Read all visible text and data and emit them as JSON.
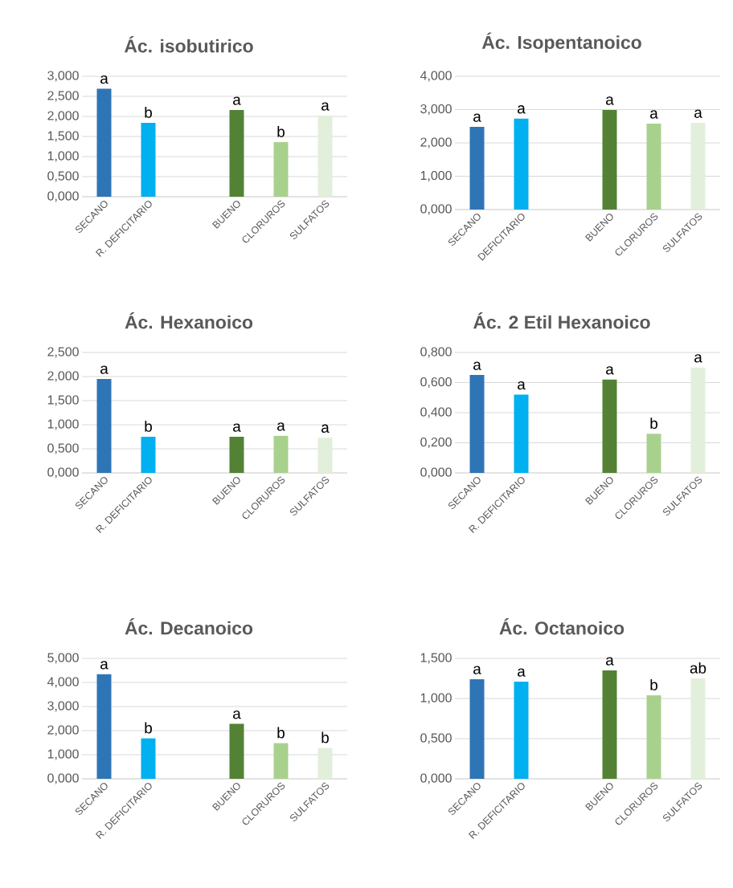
{
  "chart_data": [
    {
      "type": "bar",
      "title": "Ác. isobutirico",
      "categories": [
        "SECANO",
        "R. DEFICITARIO",
        null,
        "BUENO",
        "CLORUROS",
        "SULFATOS"
      ],
      "values": [
        2.69,
        1.84,
        null,
        2.16,
        1.36,
        2.02
      ],
      "colors": [
        "#2e75b6",
        "#00b0f0",
        null,
        "#548235",
        "#a9d18e",
        "#e2efda"
      ],
      "ylim": [
        0,
        3
      ],
      "yticks": [
        {
          "value": 0,
          "label": "0,000"
        },
        {
          "value": 0.5,
          "label": "0,500"
        },
        {
          "value": 1,
          "label": "1,000"
        },
        {
          "value": 1.5,
          "label": "1,500"
        },
        {
          "value": 2,
          "label": "2,000"
        },
        {
          "value": 2.5,
          "label": "2,500"
        },
        {
          "value": 3,
          "label": "3,000"
        }
      ],
      "grid": "y",
      "annotations": [
        {
          "text": "a",
          "x": "SECANO",
          "y": 2.69
        },
        {
          "text": "b",
          "x": "R. DEFICITARIO",
          "y": 1.84
        },
        {
          "text": "a",
          "x": "BUENO",
          "y": 2.16
        },
        {
          "text": "b",
          "x": "CLORUROS",
          "y": 1.36
        },
        {
          "text": "a",
          "x": "SULFATOS",
          "y": 2.02
        }
      ]
    },
    {
      "type": "bar",
      "title": "Ác. Isopentanoico",
      "categories": [
        "SECANO",
        "DEFICITARIO",
        null,
        "BUENO",
        "CLORUROS",
        "SULFATOS"
      ],
      "values": [
        2.48,
        2.73,
        null,
        2.99,
        2.58,
        2.6
      ],
      "colors": [
        "#2e75b6",
        "#00b0f0",
        null,
        "#548235",
        "#a9d18e",
        "#e2efda"
      ],
      "ylim": [
        0,
        4
      ],
      "yticks": [
        {
          "value": 0,
          "label": "0,000"
        },
        {
          "value": 1,
          "label": "1,000"
        },
        {
          "value": 2,
          "label": "2,000"
        },
        {
          "value": 3,
          "label": "3,000"
        },
        {
          "value": 4,
          "label": "4,000"
        }
      ],
      "grid": "y",
      "annotations": [
        {
          "text": "a",
          "x": "SECANO",
          "y": 2.48
        },
        {
          "text": "a",
          "x": "DEFICITARIO",
          "y": 2.73
        },
        {
          "text": "a",
          "x": "BUENO",
          "y": 2.99
        },
        {
          "text": "a",
          "x": "CLORUROS",
          "y": 2.58
        },
        {
          "text": "a",
          "x": "SULFATOS",
          "y": 2.6
        }
      ]
    },
    {
      "type": "bar",
      "title": "Ác. Hexanoico",
      "categories": [
        "SECANO",
        "R. DEFICITARIO",
        null,
        "BUENO",
        "CLORUROS",
        "SULFATOS"
      ],
      "values": [
        1.95,
        0.75,
        null,
        0.75,
        0.77,
        0.73
      ],
      "colors": [
        "#2e75b6",
        "#00b0f0",
        null,
        "#548235",
        "#a9d18e",
        "#e2efda"
      ],
      "ylim": [
        0,
        2.5
      ],
      "yticks": [
        {
          "value": 0,
          "label": "0,000"
        },
        {
          "value": 0.5,
          "label": "0,500"
        },
        {
          "value": 1,
          "label": "1,000"
        },
        {
          "value": 1.5,
          "label": "1,500"
        },
        {
          "value": 2,
          "label": "2,000"
        },
        {
          "value": 2.5,
          "label": "2,500"
        }
      ],
      "grid": "y",
      "annotations": [
        {
          "text": "a",
          "x": "SECANO",
          "y": 1.95
        },
        {
          "text": "b",
          "x": "R. DEFICITARIO",
          "y": 0.75
        },
        {
          "text": "a",
          "x": "BUENO",
          "y": 0.75
        },
        {
          "text": "a",
          "x": "CLORUROS",
          "y": 0.77
        },
        {
          "text": "a",
          "x": "SULFATOS",
          "y": 0.73
        }
      ]
    },
    {
      "type": "bar",
      "title": "Ác. 2 Etil Hexanoico",
      "categories": [
        "SECANO",
        "R. DEFICITARIO",
        null,
        "BUENO",
        "CLORUROS",
        "SULFATOS"
      ],
      "values": [
        0.65,
        0.52,
        null,
        0.62,
        0.26,
        0.7
      ],
      "colors": [
        "#2e75b6",
        "#00b0f0",
        null,
        "#548235",
        "#a9d18e",
        "#e2efda"
      ],
      "ylim": [
        0,
        0.8
      ],
      "yticks": [
        {
          "value": 0,
          "label": "0,000"
        },
        {
          "value": 0.2,
          "label": "0,200"
        },
        {
          "value": 0.4,
          "label": "0,400"
        },
        {
          "value": 0.6,
          "label": "0,600"
        },
        {
          "value": 0.8,
          "label": "0,800"
        }
      ],
      "grid": "y",
      "annotations": [
        {
          "text": "a",
          "x": "SECANO",
          "y": 0.65
        },
        {
          "text": "a",
          "x": "R. DEFICITARIO",
          "y": 0.52
        },
        {
          "text": "a",
          "x": "BUENO",
          "y": 0.62
        },
        {
          "text": "b",
          "x": "CLORUROS",
          "y": 0.26
        },
        {
          "text": "a",
          "x": "SULFATOS",
          "y": 0.7
        }
      ]
    },
    {
      "type": "bar",
      "title": "Ác. Decanoico",
      "categories": [
        "SECANO",
        "R. DEFICITARIO",
        null,
        "BUENO",
        "CLORUROS",
        "SULFATOS"
      ],
      "values": [
        4.34,
        1.68,
        null,
        2.28,
        1.48,
        1.28
      ],
      "colors": [
        "#2e75b6",
        "#00b0f0",
        null,
        "#548235",
        "#a9d18e",
        "#e2efda"
      ],
      "ylim": [
        0,
        5
      ],
      "yticks": [
        {
          "value": 0,
          "label": "0,000"
        },
        {
          "value": 1,
          "label": "1,000"
        },
        {
          "value": 2,
          "label": "2,000"
        },
        {
          "value": 3,
          "label": "3,000"
        },
        {
          "value": 4,
          "label": "4,000"
        },
        {
          "value": 5,
          "label": "5,000"
        }
      ],
      "grid": "y",
      "annotations": [
        {
          "text": "a",
          "x": "SECANO",
          "y": 4.34
        },
        {
          "text": "b",
          "x": "R. DEFICITARIO",
          "y": 1.68
        },
        {
          "text": "a",
          "x": "BUENO",
          "y": 2.28
        },
        {
          "text": "b",
          "x": "CLORUROS",
          "y": 1.48
        },
        {
          "text": "b",
          "x": "SULFATOS",
          "y": 1.28
        }
      ]
    },
    {
      "type": "bar",
      "title": "Ác. Octanoico",
      "categories": [
        "SECANO",
        "R. DEFICITARIO",
        null,
        "BUENO",
        "CLORUROS",
        "SULFATOS"
      ],
      "values": [
        1.24,
        1.21,
        null,
        1.35,
        1.04,
        1.25
      ],
      "colors": [
        "#2e75b6",
        "#00b0f0",
        null,
        "#548235",
        "#a9d18e",
        "#e2efda"
      ],
      "ylim": [
        0,
        1.5
      ],
      "yticks": [
        {
          "value": 0,
          "label": "0,000"
        },
        {
          "value": 0.5,
          "label": "0,500"
        },
        {
          "value": 1,
          "label": "1,000"
        },
        {
          "value": 1.5,
          "label": "1,500"
        }
      ],
      "grid": "y",
      "annotations": [
        {
          "text": "a",
          "x": "SECANO",
          "y": 1.24
        },
        {
          "text": "a",
          "x": "R. DEFICITARIO",
          "y": 1.21
        },
        {
          "text": "a",
          "x": "BUENO",
          "y": 1.35
        },
        {
          "text": "b",
          "x": "CLORUROS",
          "y": 1.04
        },
        {
          "text": "ab",
          "x": "SULFATOS",
          "y": 1.25
        }
      ]
    }
  ]
}
